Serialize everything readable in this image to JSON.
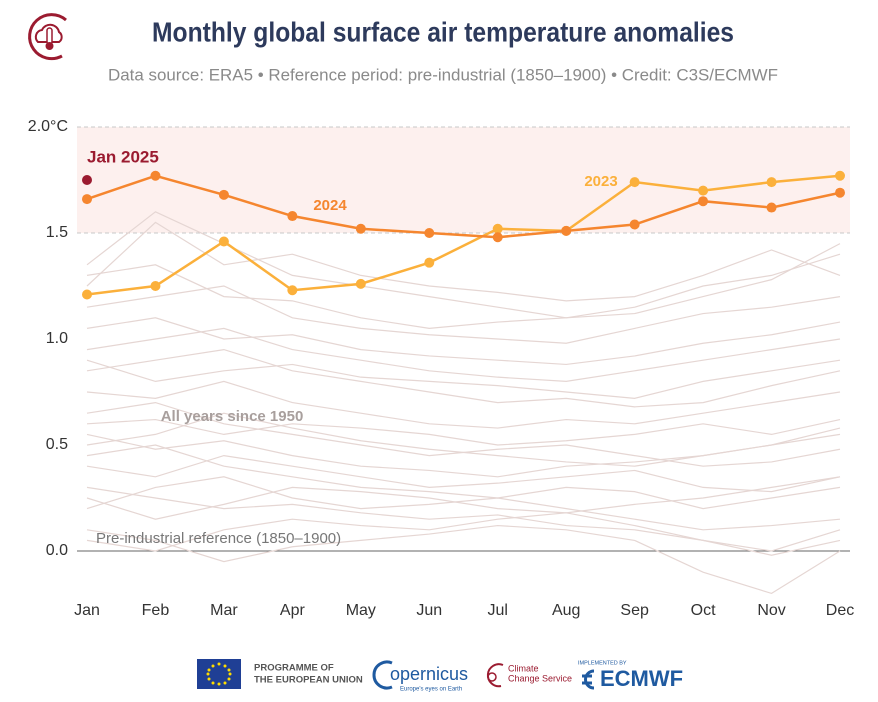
{
  "chart_data": {
    "type": "line",
    "title": "Monthly global surface air temperature anomalies",
    "subtitle": "Data source: ERA5 • Reference period: pre-industrial (1850–1900) • Credit: C3S/ECMWF",
    "categories": [
      "Jan",
      "Feb",
      "Mar",
      "Apr",
      "May",
      "Jun",
      "Jul",
      "Aug",
      "Sep",
      "Oct",
      "Nov",
      "Dec"
    ],
    "ylim": [
      -0.2,
      2.0
    ],
    "yticks": [
      {
        "value": 0,
        "label": "0.0"
      },
      0.5,
      {
        "value": 1,
        "label": "1.0"
      },
      1.5,
      {
        "value": 2,
        "label": "2.0°C"
      }
    ],
    "band": [
      1.5,
      2.0
    ],
    "band_color": "#fdf0ee",
    "series": [
      {
        "name": "2023",
        "color": "#fbb03b",
        "values": [
          1.21,
          1.25,
          1.46,
          1.23,
          1.26,
          1.36,
          1.52,
          1.51,
          1.74,
          1.7,
          1.74,
          1.77
        ]
      },
      {
        "name": "2024",
        "color": "#f5862f",
        "values": [
          1.66,
          1.77,
          1.68,
          1.58,
          1.52,
          1.5,
          1.48,
          1.51,
          1.54,
          1.65,
          1.62,
          1.69
        ]
      }
    ],
    "highlight": {
      "name": "Jan 2025",
      "category": 0,
      "value": 1.75,
      "color": "#9b1b30"
    },
    "background_color": "#e5d6d3",
    "background_series": [
      [
        0.3,
        0.25,
        0.2,
        0.22,
        0.18,
        0.15,
        0.17,
        0.12,
        0.1,
        0.05,
        -0.02,
        0.05
      ],
      [
        0.1,
        0.05,
        -0.05,
        0.02,
        0.05,
        0.08,
        0.12,
        0.1,
        0.05,
        -0.1,
        -0.2,
        0.0
      ],
      [
        0.45,
        0.5,
        0.4,
        0.35,
        0.3,
        0.28,
        0.25,
        0.3,
        0.28,
        0.2,
        0.25,
        0.3
      ],
      [
        0.55,
        0.48,
        0.52,
        0.45,
        0.4,
        0.38,
        0.35,
        0.4,
        0.42,
        0.45,
        0.5,
        0.55
      ],
      [
        0.65,
        0.7,
        0.6,
        0.55,
        0.5,
        0.45,
        0.48,
        0.5,
        0.45,
        0.4,
        0.42,
        0.48
      ],
      [
        0.75,
        0.72,
        0.8,
        0.7,
        0.65,
        0.6,
        0.58,
        0.62,
        0.6,
        0.65,
        0.7,
        0.75
      ],
      [
        0.85,
        0.9,
        0.95,
        0.85,
        0.8,
        0.75,
        0.7,
        0.72,
        0.68,
        0.7,
        0.78,
        0.85
      ],
      [
        0.95,
        1.0,
        1.05,
        0.95,
        0.9,
        0.85,
        0.82,
        0.8,
        0.85,
        0.9,
        0.95,
        1.0
      ],
      [
        1.05,
        1.1,
        1.0,
        1.02,
        0.95,
        0.92,
        0.9,
        0.88,
        0.92,
        0.98,
        1.02,
        1.08
      ],
      [
        1.15,
        1.2,
        1.25,
        1.1,
        1.05,
        1.02,
        1.0,
        0.98,
        1.05,
        1.12,
        1.15,
        1.2
      ],
      [
        1.3,
        1.35,
        1.2,
        1.18,
        1.1,
        1.05,
        1.08,
        1.1,
        1.12,
        1.2,
        1.28,
        1.45
      ],
      [
        1.35,
        1.6,
        1.45,
        1.3,
        1.25,
        1.2,
        1.15,
        1.1,
        1.15,
        1.25,
        1.3,
        1.4
      ],
      [
        1.25,
        1.55,
        1.35,
        1.4,
        1.3,
        1.25,
        1.22,
        1.18,
        1.2,
        1.3,
        1.42,
        1.3
      ],
      [
        0.2,
        0.3,
        0.35,
        0.25,
        0.2,
        0.22,
        0.25,
        0.2,
        0.15,
        0.1,
        0.12,
        0.15
      ],
      [
        0.4,
        0.35,
        0.45,
        0.4,
        0.35,
        0.3,
        0.32,
        0.35,
        0.38,
        0.3,
        0.28,
        0.35
      ],
      [
        0.05,
        0.0,
        0.1,
        0.15,
        0.12,
        0.1,
        0.15,
        0.18,
        0.12,
        0.05,
        0.0,
        0.1
      ],
      [
        0.6,
        0.62,
        0.55,
        0.6,
        0.58,
        0.55,
        0.5,
        0.52,
        0.55,
        0.6,
        0.55,
        0.62
      ],
      [
        0.9,
        0.8,
        0.85,
        0.88,
        0.82,
        0.8,
        0.78,
        0.75,
        0.72,
        0.8,
        0.85,
        0.9
      ],
      [
        0.5,
        0.55,
        0.65,
        0.58,
        0.52,
        0.48,
        0.45,
        0.42,
        0.4,
        0.45,
        0.5,
        0.58
      ],
      [
        0.25,
        0.15,
        0.22,
        0.3,
        0.28,
        0.25,
        0.2,
        0.18,
        0.22,
        0.25,
        0.3,
        0.35
      ]
    ],
    "annotations": [
      "2024",
      "2023",
      "All years since 1950",
      "Pre-industrial reference (1850–1900)"
    ]
  },
  "footer": {
    "eu": [
      "PROGRAMME OF",
      "THE EUROPEAN UNION"
    ],
    "copernicus": "opernicus",
    "copernicus_tagline": "Europe's eyes on Earth",
    "c3s": [
      "Climate",
      "Change Service"
    ],
    "ecmwf_note": "IMPLEMENTED BY",
    "ecmwf": "ECMWF"
  }
}
